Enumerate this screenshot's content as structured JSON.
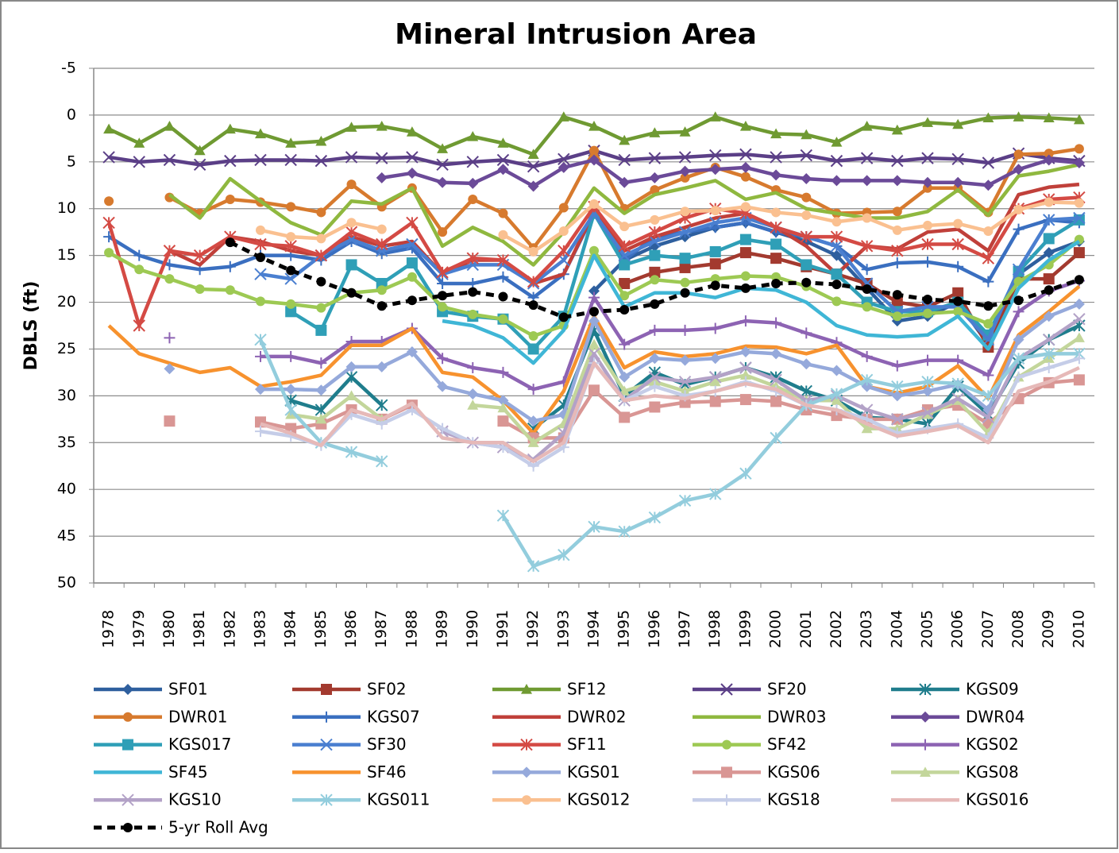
{
  "chart_data": {
    "type": "line",
    "title": "Mineral Intrusion Area",
    "y_label": "DBLS (ft)",
    "categories": [
      "1978",
      "1979",
      "1980",
      "1981",
      "1982",
      "1983",
      "1984",
      "1985",
      "1986",
      "1987",
      "1988",
      "1989",
      "1990",
      "1991",
      "1992",
      "1993",
      "1994",
      "1995",
      "1996",
      "1997",
      "1998",
      "1999",
      "2000",
      "2001",
      "2002",
      "2003",
      "2004",
      "2005",
      "2006",
      "2007",
      "2008",
      "2009",
      "2010"
    ],
    "ylim": [
      -5,
      50
    ],
    "y_inverted": true,
    "yticks": [
      -5,
      0,
      5,
      10,
      15,
      20,
      25,
      30,
      35,
      40,
      45,
      50
    ],
    "grid": true,
    "legend": "bottom",
    "series": [
      {
        "name": "SF01",
        "color": "#2e5f9e",
        "marker": "diamond",
        "values": [
          null,
          null,
          null,
          null,
          null,
          null,
          null,
          null,
          null,
          null,
          null,
          null,
          null,
          null,
          null,
          null,
          18.8,
          15.5,
          14,
          13,
          12,
          11.5,
          12.5,
          13.5,
          15,
          18.5,
          22,
          21.5,
          20,
          24.5,
          17,
          14.7,
          13.5
        ]
      },
      {
        "name": "SF02",
        "color": "#a33a2f",
        "marker": "square",
        "values": [
          null,
          null,
          null,
          null,
          null,
          null,
          null,
          null,
          null,
          null,
          null,
          null,
          null,
          null,
          null,
          null,
          null,
          18,
          16.8,
          16.3,
          15.9,
          14.7,
          15.3,
          16.2,
          17,
          18,
          20,
          20.5,
          19,
          24.8,
          17.5,
          17.5,
          14.7
        ]
      },
      {
        "name": "SF12",
        "color": "#6f9a32",
        "marker": "triangle",
        "values": [
          1.5,
          3,
          1.2,
          3.8,
          1.5,
          2,
          3,
          2.8,
          1.3,
          1.2,
          1.8,
          3.6,
          2.3,
          3,
          4.2,
          0.2,
          1.2,
          2.7,
          1.9,
          1.8,
          0.2,
          1.2,
          2,
          2.1,
          2.9,
          1.2,
          1.6,
          0.8,
          1,
          0.3,
          0.2,
          0.3,
          0.5
        ]
      },
      {
        "name": "SF20",
        "color": "#5b3f87",
        "marker": "x",
        "values": [
          4.5,
          5,
          4.8,
          5.3,
          4.9,
          4.8,
          4.8,
          4.9,
          4.5,
          4.6,
          4.5,
          5.3,
          5,
          4.8,
          5.5,
          4.7,
          3.8,
          4.8,
          4.6,
          4.5,
          4.3,
          4.2,
          4.5,
          4.3,
          4.9,
          4.6,
          4.9,
          4.6,
          4.7,
          5.1,
          4.1,
          4.6,
          4.9
        ]
      },
      {
        "name": "KGS09",
        "color": "#1f7d8c",
        "marker": "asterisk",
        "values": [
          null,
          null,
          null,
          null,
          null,
          null,
          30.5,
          31.5,
          28,
          31,
          null,
          null,
          null,
          null,
          33.5,
          31,
          23,
          30,
          27.5,
          28.8,
          28,
          27,
          28,
          29.5,
          30.5,
          32.3,
          32.5,
          33,
          29,
          32,
          26.5,
          24,
          22.5
        ]
      },
      {
        "name": "DWR01",
        "color": "#d77a2e",
        "marker": "circle",
        "values": [
          9.2,
          null,
          8.8,
          10.5,
          9,
          9.3,
          9.8,
          10.4,
          7.4,
          9.8,
          7.8,
          12.5,
          9,
          10.5,
          14.2,
          9.9,
          3.8,
          10,
          8,
          6.7,
          5.6,
          6.6,
          8,
          8.8,
          10.5,
          10.4,
          10.3,
          7.8,
          7.8,
          10.4,
          4.2,
          4.1,
          3.6
        ]
      },
      {
        "name": "KGS07",
        "color": "#3a6fc0",
        "marker": "plus",
        "values": [
          13,
          15,
          16,
          16.5,
          16.2,
          15,
          15,
          15.5,
          13.5,
          14.8,
          14.2,
          18,
          18,
          17.3,
          19.5,
          17,
          10.5,
          15.5,
          13,
          12.5,
          12,
          11.5,
          12.5,
          13,
          14,
          16.5,
          15.8,
          15.7,
          16.2,
          17.8,
          12.2,
          11.2,
          11.5
        ]
      },
      {
        "name": "DWR02",
        "color": "#c0403a",
        "marker": "none",
        "values": [
          null,
          null,
          14.5,
          16,
          13,
          13.5,
          14.5,
          15,
          13,
          14,
          13.5,
          17,
          15.5,
          15.5,
          18,
          17,
          10.3,
          14.5,
          13,
          12,
          11,
          10.5,
          12,
          14,
          17,
          14,
          14.3,
          12.5,
          12.2,
          14.5,
          8.5,
          7.7,
          7.4
        ]
      },
      {
        "name": "DWR03",
        "color": "#8fb83f",
        "marker": "none",
        "values": [
          9,
          null,
          8.5,
          11,
          6.8,
          9.2,
          11.5,
          12.8,
          9.2,
          9.5,
          7.8,
          14,
          12,
          13.5,
          16,
          12.5,
          7.8,
          10.5,
          8.5,
          7.8,
          7,
          9,
          8.3,
          10,
          10.5,
          11,
          11,
          10.3,
          8,
          10.7,
          6.5,
          6,
          5.3
        ]
      },
      {
        "name": "DWR04",
        "color": "#6b4a98",
        "marker": "diamond",
        "values": [
          null,
          null,
          null,
          null,
          null,
          null,
          null,
          null,
          null,
          6.7,
          6.2,
          7.2,
          7.3,
          5.8,
          7.6,
          5.6,
          4.8,
          7.2,
          6.7,
          6,
          5.8,
          5.6,
          6.4,
          6.8,
          7,
          7,
          7,
          7.2,
          7.2,
          7.5,
          5.8,
          4.8,
          5.1
        ]
      },
      {
        "name": "KGS017",
        "color": "#2f9fb7",
        "marker": "square",
        "values": [
          null,
          null,
          null,
          null,
          null,
          null,
          21,
          23,
          16,
          18,
          15.8,
          21,
          21.5,
          21.8,
          25,
          21.5,
          10.5,
          16,
          15,
          15.3,
          14.6,
          13.3,
          13.8,
          16,
          17,
          20,
          21,
          21,
          20,
          23.5,
          16.7,
          13.2,
          11.2
        ]
      },
      {
        "name": "SF30",
        "color": "#4a7fd0",
        "marker": "x",
        "values": [
          null,
          null,
          null,
          null,
          null,
          17,
          17.5,
          15,
          13.3,
          14.5,
          13.8,
          17,
          16,
          16,
          18,
          15.5,
          10.5,
          15,
          13.5,
          12.5,
          11.5,
          11,
          12,
          13,
          14,
          18,
          21,
          20.5,
          20.5,
          24,
          16.5,
          11.2,
          11
        ]
      },
      {
        "name": "SF11",
        "color": "#d44a44",
        "marker": "asterisk",
        "values": [
          11.5,
          22.5,
          14.5,
          15,
          13,
          13.8,
          14,
          15,
          12.5,
          13.8,
          11.5,
          16.8,
          15.3,
          15.5,
          17.8,
          14.5,
          9.8,
          14,
          12.5,
          11,
          10,
          10.5,
          12,
          13,
          13,
          14,
          14.5,
          13.8,
          13.8,
          15.3,
          10,
          9,
          8.8
        ]
      },
      {
        "name": "SF42",
        "color": "#9dc953",
        "marker": "circle",
        "values": [
          14.7,
          16.5,
          17.5,
          18.6,
          18.7,
          19.9,
          20.2,
          20.6,
          19,
          18.7,
          17.3,
          20.5,
          21.3,
          21.8,
          23.6,
          22.5,
          14.5,
          19.3,
          17.6,
          17.9,
          17.5,
          17.2,
          17.3,
          18.3,
          19.9,
          20.5,
          21.5,
          21.2,
          21,
          22.3,
          17.8,
          16,
          13.3
        ]
      },
      {
        "name": "KGS02",
        "color": "#8d63b3",
        "marker": "plus",
        "values": [
          null,
          null,
          23.8,
          null,
          null,
          25.8,
          25.8,
          26.5,
          24.2,
          24.2,
          22.8,
          26,
          27,
          27.5,
          29.3,
          28.5,
          19.5,
          24.5,
          23,
          23,
          22.8,
          22,
          22.2,
          23.3,
          24.3,
          25.8,
          26.8,
          26.2,
          26.2,
          27.8,
          21,
          18.8,
          17.7
        ]
      },
      {
        "name": "SF45",
        "color": "#3fb6d6",
        "marker": "none",
        "values": [
          null,
          null,
          null,
          null,
          null,
          null,
          null,
          null,
          null,
          null,
          null,
          22,
          22.5,
          23.8,
          26.5,
          23,
          15,
          20.5,
          19,
          19,
          19.5,
          18.5,
          18.7,
          20,
          22.5,
          23.5,
          23.7,
          23.5,
          21.5,
          25,
          18.5,
          15.5,
          13.5
        ]
      },
      {
        "name": "SF46",
        "color": "#f7922e",
        "marker": "none",
        "values": [
          22.5,
          25.5,
          26.5,
          27.5,
          27,
          29,
          28.5,
          27.8,
          24.6,
          24.6,
          22.8,
          27.5,
          28,
          30.5,
          34,
          29.5,
          21.5,
          27,
          25.3,
          25.8,
          25.5,
          24.7,
          24.8,
          25.5,
          24.6,
          29,
          29.7,
          29,
          26.8,
          30.3,
          23.5,
          21,
          18.3
        ]
      },
      {
        "name": "KGS01",
        "color": "#95a9db",
        "marker": "diamond",
        "values": [
          null,
          null,
          27.1,
          null,
          null,
          29.3,
          29.3,
          29.4,
          26.9,
          26.9,
          25.3,
          29,
          29.8,
          30.5,
          32.7,
          32,
          22,
          28,
          26,
          26.2,
          26,
          25.3,
          25.5,
          26.6,
          27.3,
          29,
          30,
          29.5,
          28.8,
          31.5,
          24,
          21.5,
          20.2
        ]
      },
      {
        "name": "KGS06",
        "color": "#d99694",
        "marker": "square",
        "values": [
          null,
          null,
          32.7,
          null,
          null,
          32.8,
          33.5,
          33,
          31.5,
          32.5,
          31,
          null,
          null,
          32.7,
          34.5,
          34.5,
          29.4,
          32.3,
          31.2,
          30.7,
          30.6,
          30.4,
          30.6,
          31.5,
          32.1,
          32.5,
          32.5,
          31.5,
          31,
          33,
          30.3,
          28.6,
          28.3
        ]
      },
      {
        "name": "KGS08",
        "color": "#c3d69b",
        "marker": "triangle",
        "values": [
          null,
          null,
          null,
          null,
          null,
          null,
          32,
          32.5,
          30,
          32.5,
          null,
          null,
          31,
          31.3,
          35,
          33,
          24.5,
          29.5,
          28.5,
          29.5,
          28.5,
          27.8,
          29,
          30.5,
          30.5,
          33.5,
          33.5,
          32,
          30.5,
          34,
          28,
          26,
          23.8
        ]
      },
      {
        "name": "KGS10",
        "color": "#b3a2c7",
        "marker": "x",
        "values": [
          null,
          null,
          null,
          null,
          null,
          null,
          null,
          null,
          null,
          null,
          null,
          33.8,
          35,
          35.5,
          36.8,
          34,
          25.5,
          30.5,
          28,
          28.5,
          28,
          27,
          28.3,
          30.5,
          30,
          31.5,
          32.5,
          31.8,
          30.3,
          32.3,
          26,
          24,
          21.8
        ]
      },
      {
        "name": "KGS011",
        "color": "#93cddd",
        "marker": "asterisk",
        "values": [
          null,
          null,
          null,
          null,
          null,
          24,
          31.5,
          35,
          36,
          37,
          null,
          null,
          null,
          42.8,
          48.2,
          47,
          44,
          44.5,
          43,
          41.2,
          40.5,
          38.3,
          34.5,
          31,
          29.8,
          28.3,
          29,
          28.5,
          28.7,
          30,
          26,
          25.5,
          25.5
        ]
      },
      {
        "name": "KGS012",
        "color": "#fac090",
        "marker": "circle",
        "values": [
          null,
          null,
          null,
          null,
          null,
          12.3,
          13,
          13.2,
          11.5,
          12.2,
          null,
          null,
          null,
          12.8,
          14.6,
          12.4,
          9.5,
          11.9,
          11.2,
          10.3,
          10.2,
          9.8,
          10.4,
          10.7,
          11.4,
          11,
          12.3,
          11.8,
          11.6,
          12.4,
          10.1,
          9.3,
          9.4
        ]
      },
      {
        "name": "KGS18",
        "color": "#c5cde8",
        "marker": "plus",
        "values": [
          null,
          null,
          null,
          null,
          null,
          33.8,
          34.3,
          35.3,
          32,
          33,
          31.5,
          33.5,
          35,
          35.5,
          37.5,
          35.5,
          26.5,
          30.5,
          29,
          30,
          29.5,
          28.5,
          29.5,
          31,
          31.5,
          32.5,
          34,
          33.5,
          33,
          34.5,
          28,
          27,
          26
        ]
      },
      {
        "name": "KGS016",
        "color": "#e6b9b8",
        "marker": "none",
        "values": [
          null,
          null,
          null,
          null,
          null,
          33,
          34,
          35.3,
          31.5,
          32.5,
          30.8,
          34.5,
          35,
          35,
          37,
          35,
          26.5,
          30.5,
          30,
          30.3,
          29.5,
          28.7,
          29.3,
          31,
          31.5,
          33,
          34.3,
          33.8,
          33.2,
          35,
          29.5,
          28.5,
          27
        ]
      },
      {
        "name": "5-yr Roll Avg",
        "color": "#000000",
        "marker": "circle",
        "dashed": true,
        "values": [
          null,
          null,
          null,
          null,
          13.6,
          15.2,
          16.6,
          17.8,
          19,
          20.4,
          19.8,
          19.3,
          18.9,
          19.4,
          20.3,
          21.6,
          21,
          20.8,
          20.2,
          19,
          18.2,
          18.5,
          18,
          17.9,
          18.1,
          18.6,
          19.2,
          19.7,
          19.9,
          20.4,
          19.8,
          18.7,
          17.6
        ]
      }
    ]
  }
}
